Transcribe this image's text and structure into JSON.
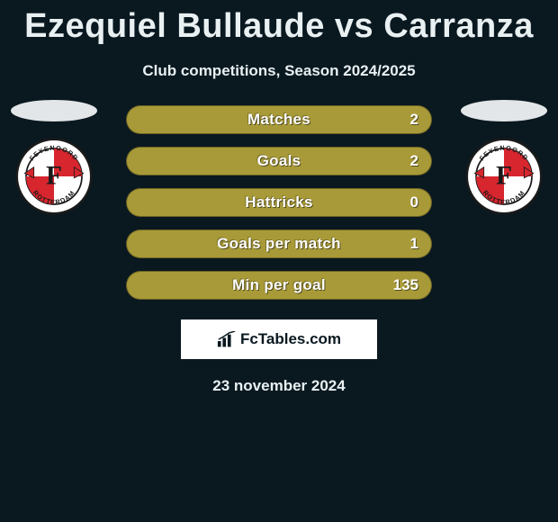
{
  "title": "Ezequiel Bullaude vs Carranza",
  "subtitle": "Club competitions, Season 2024/2025",
  "date": "23 november 2024",
  "brand": "FcTables.com",
  "colors": {
    "background": "#0a1820",
    "bar_fill": "#a89a38",
    "text": "#e8f0f2",
    "brand_bg": "#ffffff",
    "brand_text": "#0a1820",
    "crest_red": "#d7262e",
    "crest_border": "#1a1a1a",
    "avatar": "#e2e6e8"
  },
  "crest": {
    "top_text": "FEYENOORD",
    "bottom_text": "ROTTERDAM",
    "letter": "F"
  },
  "stats": [
    {
      "label": "Matches",
      "value": "2"
    },
    {
      "label": "Goals",
      "value": "2"
    },
    {
      "label": "Hattricks",
      "value": "0"
    },
    {
      "label": "Goals per match",
      "value": "1"
    },
    {
      "label": "Min per goal",
      "value": "135"
    }
  ]
}
